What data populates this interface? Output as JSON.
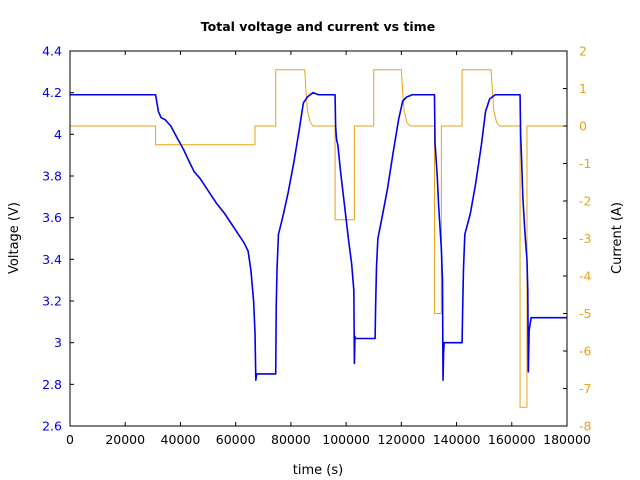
{
  "chart_data": {
    "type": "line",
    "title": "Total voltage and current vs time",
    "xlabel": "time (s)",
    "ylabel_left": "Voltage (V)",
    "ylabel_right": "Current (A)",
    "xlim": [
      0,
      180000
    ],
    "ylim_left": [
      2.6,
      4.4
    ],
    "ylim_right": [
      -8,
      2
    ],
    "x_ticks": [
      0,
      20000,
      40000,
      60000,
      80000,
      100000,
      120000,
      140000,
      160000,
      180000
    ],
    "y_left_ticks": [
      2.6,
      2.8,
      3,
      3.2,
      3.4,
      3.6,
      3.8,
      4,
      4.2,
      4.4
    ],
    "y_right_ticks": [
      -8,
      -7,
      -6,
      -5,
      -4,
      -3,
      -2,
      -1,
      0,
      1,
      2
    ],
    "grid": false,
    "colors": {
      "voltage": "#0000ee",
      "current": "#e8a317",
      "left_axis_text": "#0000ee",
      "right_axis_text": "#e8a317"
    },
    "series": [
      {
        "axis": "left",
        "x": [
          0,
          31000,
          31500,
          32000,
          33000,
          34500,
          36500,
          38500,
          41000,
          43500,
          45000,
          47000,
          50000,
          53000,
          56000,
          59000,
          61500,
          63000,
          64500,
          65500,
          66500,
          67000,
          67300,
          67600,
          70000,
          74500,
          74700,
          75000,
          75500,
          77000,
          79000,
          81000,
          83000,
          84500,
          86000,
          88000,
          90000,
          96000,
          96200,
          96400,
          96600,
          97000,
          98000,
          99500,
          101000,
          102000,
          102800,
          103000,
          103200,
          103500,
          104000,
          110500,
          110700,
          111000,
          111500,
          113000,
          115000,
          117000,
          119000,
          120500,
          122000,
          124000,
          132000,
          132200,
          132500,
          133000,
          133500,
          134500,
          134900,
          135100,
          135300,
          135500,
          136000,
          142000,
          142200,
          142500,
          143000,
          145000,
          147000,
          149000,
          150500,
          152000,
          154000,
          163000,
          163200,
          163500,
          164000,
          164800,
          165500,
          165800,
          166000,
          166300,
          167000,
          180000
        ],
        "values": [
          4.19,
          4.19,
          4.15,
          4.11,
          4.08,
          4.07,
          4.04,
          3.99,
          3.93,
          3.86,
          3.82,
          3.79,
          3.73,
          3.67,
          3.62,
          3.56,
          3.51,
          3.48,
          3.44,
          3.35,
          3.2,
          3.05,
          2.82,
          2.85,
          2.85,
          2.85,
          3.18,
          3.36,
          3.52,
          3.6,
          3.72,
          3.86,
          4.02,
          4.15,
          4.18,
          4.2,
          4.19,
          4.19,
          4.04,
          4.0,
          3.97,
          3.95,
          3.82,
          3.65,
          3.48,
          3.38,
          3.25,
          2.9,
          3.03,
          3.02,
          3.02,
          3.02,
          3.18,
          3.36,
          3.5,
          3.6,
          3.74,
          3.91,
          4.07,
          4.16,
          4.18,
          4.19,
          4.19,
          3.96,
          3.9,
          3.8,
          3.66,
          3.45,
          3.3,
          2.82,
          2.95,
          3.0,
          3.0,
          3.0,
          3.15,
          3.35,
          3.52,
          3.62,
          3.77,
          3.95,
          4.11,
          4.17,
          4.19,
          4.19,
          4.0,
          3.9,
          3.7,
          3.52,
          3.4,
          3.25,
          2.86,
          3.06,
          3.12,
          3.12
        ]
      },
      {
        "axis": "right",
        "x": [
          0,
          31000,
          31000,
          67000,
          67000,
          74500,
          74500,
          85000,
          85500,
          86000,
          87000,
          88000,
          96000,
          96000,
          103000,
          103000,
          110000,
          110000,
          120000,
          120500,
          121000,
          122000,
          123000,
          132000,
          132000,
          134500,
          134500,
          142000,
          142000,
          152500,
          153000,
          153500,
          154500,
          155500,
          163000,
          163000,
          165500,
          165500,
          180000
        ],
        "values": [
          0,
          0,
          -0.5,
          -0.5,
          0,
          0,
          1.5,
          1.5,
          0.9,
          0.4,
          0.1,
          0,
          0,
          -2.5,
          -2.5,
          0,
          0,
          1.5,
          1.5,
          0.9,
          0.4,
          0.1,
          0,
          0,
          -5,
          -5,
          0,
          0,
          1.5,
          1.5,
          0.9,
          0.4,
          0.1,
          0,
          0,
          -7.5,
          -7.5,
          0,
          0
        ]
      }
    ]
  }
}
